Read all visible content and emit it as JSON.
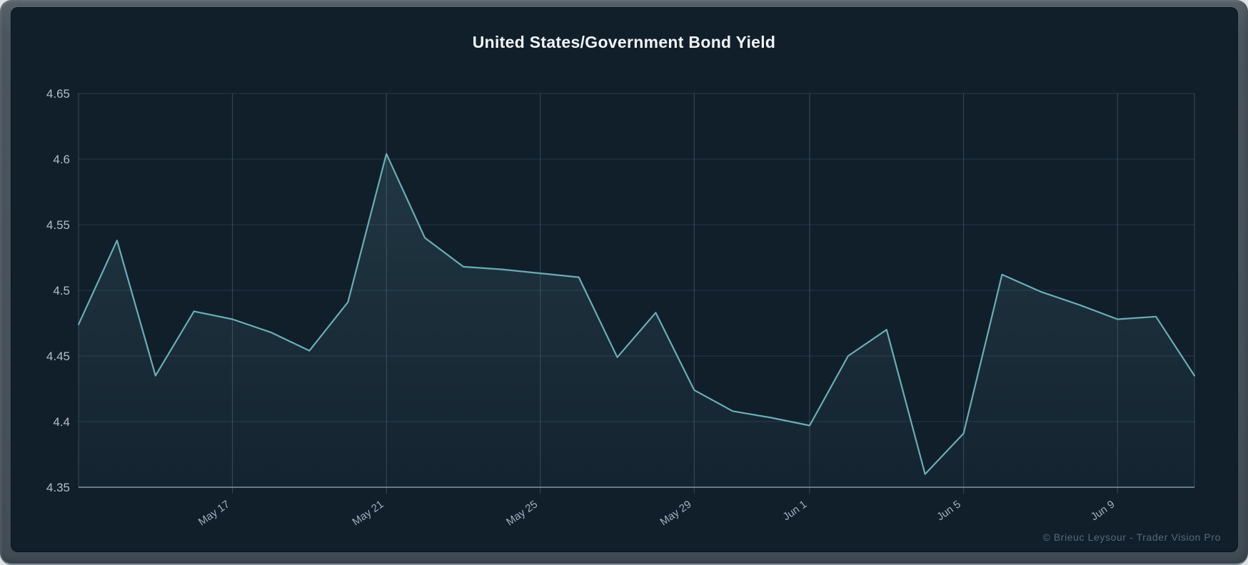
{
  "header": {
    "title": "United States/Government Bond Yield"
  },
  "footer": {
    "credit": "© Brieuc Leysour - Trader Vision Pro"
  },
  "colors": {
    "panel_background": "#111f2b",
    "frame_gray": "#47525c",
    "title_text": "#f2f5f7",
    "line": "#6badb5",
    "area_top": "rgba(109,173,181,0.17)",
    "area_bottom": "rgba(109,173,181,0.03)",
    "grid_horizontal": "rgba(142,168,187,0.18)",
    "grid_vertical": "rgba(142,168,187,0.30)",
    "axis_line": "rgba(170,195,210,0.55)",
    "y_tick_text": "#b2bfc9",
    "x_tick_text": "#9fb0bc",
    "watermark_text": "#56697a"
  },
  "chart_data": {
    "type": "line",
    "title": "United States/Government Bond Yield",
    "xlabel": "",
    "ylabel": "",
    "ylim": [
      4.35,
      4.65
    ],
    "grid": true,
    "legend": false,
    "series": [
      {
        "name": "Government Bond Yield",
        "values": [
          4.474,
          4.538,
          4.435,
          4.484,
          4.478,
          4.468,
          4.454,
          4.491,
          4.604,
          4.54,
          4.518,
          4.516,
          4.513,
          4.51,
          4.449,
          4.483,
          4.424,
          4.408,
          4.403,
          4.397,
          4.45,
          4.47,
          4.36,
          4.391,
          4.512,
          4.499,
          4.489,
          4.478,
          4.48,
          4.435
        ]
      }
    ],
    "y_ticks": [
      {
        "value": 4.65,
        "label": "4.65"
      },
      {
        "value": 4.6,
        "label": "4.6"
      },
      {
        "value": 4.55,
        "label": "4.55"
      },
      {
        "value": 4.5,
        "label": "4.5"
      },
      {
        "value": 4.45,
        "label": "4.45"
      },
      {
        "value": 4.4,
        "label": "4.4"
      },
      {
        "value": 4.35,
        "label": "4.35"
      }
    ],
    "x_ticks": [
      {
        "index": 4,
        "label": "May 17"
      },
      {
        "index": 8,
        "label": "May 21"
      },
      {
        "index": 12,
        "label": "May 25"
      },
      {
        "index": 16,
        "label": "May 29"
      },
      {
        "index": 19,
        "label": "Jun 1"
      },
      {
        "index": 23,
        "label": "Jun 5"
      },
      {
        "index": 27,
        "label": "Jun 9"
      }
    ]
  }
}
